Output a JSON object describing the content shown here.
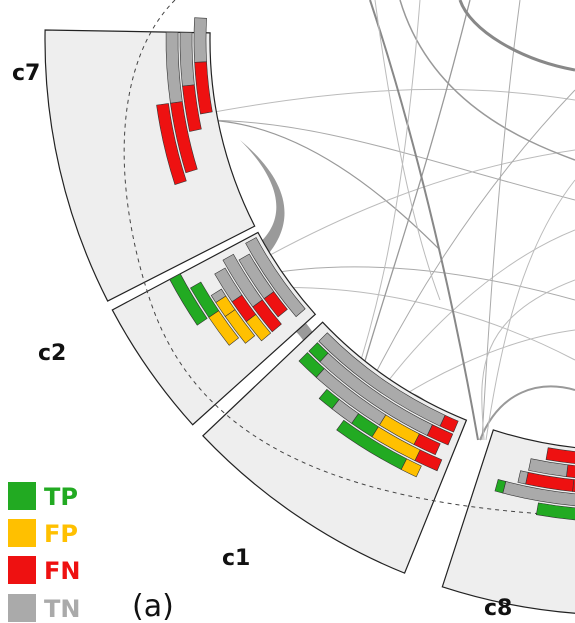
{
  "figure": {
    "panel_label": "(a)",
    "colors": {
      "TP": "#22aa22",
      "FP": "#ffc000",
      "FN": "#ee1111",
      "TN": "#aaaaaa",
      "sector_fill": "#eeeeee",
      "sector_stroke": "#222222",
      "chord": "#888888"
    },
    "legend": [
      {
        "key": "TP",
        "label": "TP"
      },
      {
        "key": "FP",
        "label": "FP"
      },
      {
        "key": "FN",
        "label": "FN"
      },
      {
        "key": "TN",
        "label": "TN"
      }
    ],
    "clusters": [
      {
        "id": "c7",
        "label": "c7"
      },
      {
        "id": "c2",
        "label": "c2"
      },
      {
        "id": "c1",
        "label": "c1"
      },
      {
        "id": "c8",
        "label": "c8"
      }
    ]
  }
}
